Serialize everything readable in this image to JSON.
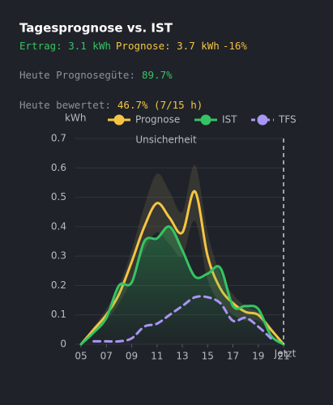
{
  "card": {
    "title": "Tagesprognose vs. IST",
    "line1": [
      "Ertrag: 3.1 kWh",
      "Prognose: 3.7 kWh",
      "-16%"
    ],
    "line2": [
      "Heute Prognosegüte:",
      "89.7%"
    ],
    "line3": [
      "Heute bewertet:",
      "46.7% (7/15 h)"
    ]
  },
  "chart_data": {
    "type": "line",
    "y_label": "kWh",
    "x": [
      5,
      6,
      7,
      8,
      9,
      10,
      11,
      12,
      13,
      14,
      15,
      16,
      17,
      18,
      19,
      20,
      21
    ],
    "series": [
      {
        "name": "Prognose",
        "color": "#f5c542",
        "dashed": false,
        "values": [
          0,
          0.05,
          0.1,
          0.17,
          0.28,
          0.4,
          0.48,
          0.43,
          0.38,
          0.52,
          0.3,
          0.19,
          0.14,
          0.11,
          0.1,
          0.05,
          0
        ]
      },
      {
        "name": "IST",
        "color": "#35c463",
        "dashed": false,
        "values": [
          0,
          0.04,
          0.09,
          0.2,
          0.21,
          0.35,
          0.36,
          0.4,
          0.32,
          0.23,
          0.24,
          0.26,
          0.13,
          0.13,
          0.12,
          0.03,
          0
        ]
      },
      {
        "name": "TFS",
        "color": "#a995f5",
        "dashed": true,
        "values": [
          null,
          0.01,
          0.01,
          0.01,
          0.02,
          0.06,
          0.07,
          0.1,
          0.13,
          0.16,
          0.16,
          0.14,
          0.08,
          0.09,
          0.06,
          0.02,
          null
        ]
      }
    ],
    "band": {
      "name": "Unsicherheit",
      "upper": [
        0,
        0.06,
        0.12,
        0.2,
        0.32,
        0.47,
        0.58,
        0.52,
        0.45,
        0.61,
        0.38,
        0.24,
        0.17,
        0.13,
        0.11,
        0.06,
        0
      ],
      "lower": [
        0,
        0.04,
        0.08,
        0.14,
        0.22,
        0.32,
        0.38,
        0.34,
        0.3,
        0.42,
        0.22,
        0.14,
        0.1,
        0.08,
        0.08,
        0.04,
        0
      ]
    },
    "now": {
      "x": 21,
      "label": "Jetzt"
    },
    "xlim": [
      5,
      21
    ],
    "xticks": [
      {
        "value": 5,
        "label": "05"
      },
      {
        "value": 7,
        "label": "07"
      },
      {
        "value": 9,
        "label": "09"
      },
      11,
      13,
      15,
      17,
      19,
      21
    ],
    "ylim": [
      0,
      0.7
    ],
    "yticks": [
      0,
      0.1,
      0.2,
      0.3,
      0.4,
      0.5,
      0.6,
      0.7
    ],
    "grid": true
  }
}
